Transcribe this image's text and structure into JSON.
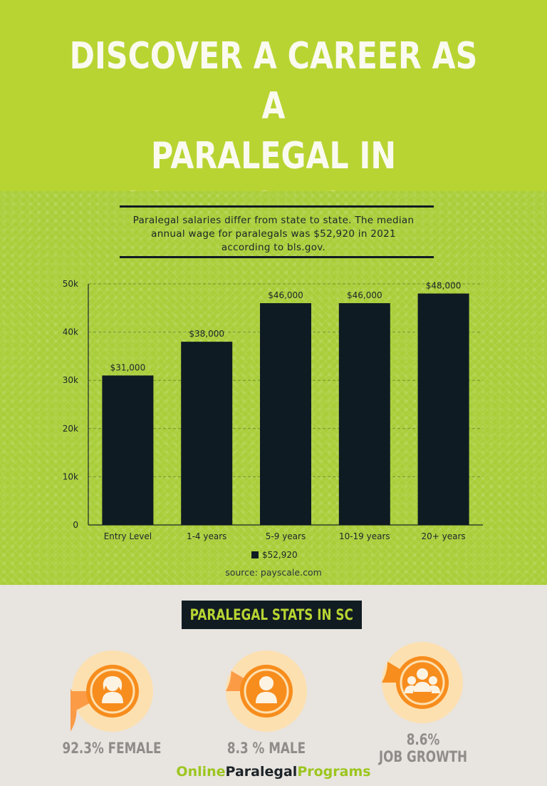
{
  "header": {
    "title": "DISCOVER A CAREER AS A\nPARALEGAL IN\nSOUTH CAROLINA"
  },
  "intro": {
    "text": "Paralegal salaries differ from state to state. The median annual wage for paralegals was $52,920 in 2021 according to bls.gov."
  },
  "chart_data": {
    "type": "bar",
    "categories": [
      "Entry Level",
      "1-4 years",
      "5-9 years",
      "10-19 years",
      "20+ years"
    ],
    "series": [
      {
        "name": "$52,920",
        "values": [
          31000,
          38000,
          46000,
          46000,
          48000
        ],
        "color": "#0f1b22"
      }
    ],
    "data_labels": [
      "$31,000",
      "$38,000",
      "$46,000",
      "$46,000",
      "$48,000"
    ],
    "y_ticks": [
      0,
      10000,
      20000,
      30000,
      40000,
      50000
    ],
    "y_tick_labels": [
      "0",
      "10k",
      "20k",
      "30k",
      "40k",
      "50k"
    ],
    "ylim": [
      0,
      50000
    ],
    "grid": true,
    "legend_position": "bottom-center",
    "title": "",
    "xlabel": "",
    "ylabel": ""
  },
  "source": "source: payscale.com",
  "stats": {
    "title": "PARALEGAL STATS IN SC",
    "items": [
      {
        "label": "92.3% FEMALE",
        "value": 92.3,
        "icon": "female-person-icon"
      },
      {
        "label": "8.3 % MALE",
        "value": 8.3,
        "icon": "male-person-icon"
      },
      {
        "label": "8.6%\nJOB GROWTH",
        "value": 8.6,
        "icon": "group-people-icon"
      }
    ]
  },
  "footer": {
    "logo_part1": "Online",
    "logo_part2": "Paralegal",
    "logo_part3": "Programs"
  },
  "colors": {
    "header_green": "#b8d432",
    "panel_green": "#a9ce3a",
    "bar_navy": "#0f1b22",
    "stats_bg": "#e8e4df",
    "ring_light": "#fde0b0",
    "ring_dark": "#fb9b46",
    "icon_orange": "#f78d1d"
  }
}
